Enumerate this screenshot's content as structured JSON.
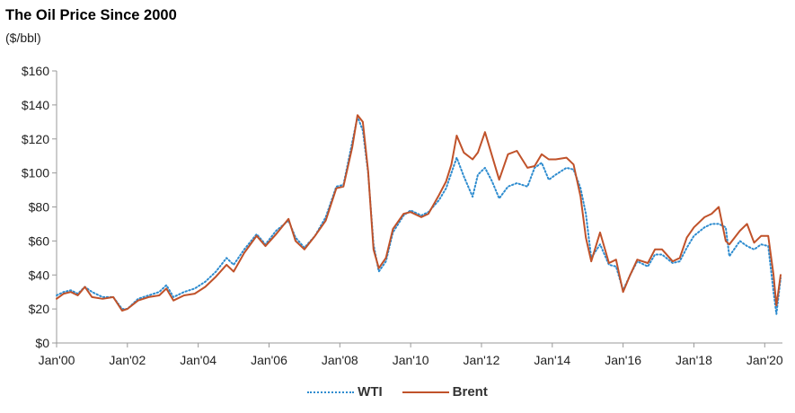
{
  "chart_data": {
    "type": "line",
    "title": "The Oil Price Since 2000",
    "subtitle": "($/bbl)",
    "xlabel": "",
    "ylabel": "",
    "ylim": [
      0,
      160
    ],
    "xlim": [
      2000.0,
      2020.5
    ],
    "y_ticks": [
      0,
      20,
      40,
      60,
      80,
      100,
      120,
      140,
      160
    ],
    "y_tick_labels": [
      "$0",
      "$20",
      "$40",
      "$60",
      "$80",
      "$100",
      "$120",
      "$140",
      "$160"
    ],
    "x_ticks": [
      2000,
      2002,
      2004,
      2006,
      2008,
      2010,
      2012,
      2014,
      2016,
      2018,
      2020
    ],
    "x_tick_labels": [
      "Jan'00",
      "Jan'02",
      "Jan'04",
      "Jan'06",
      "Jan'08",
      "Jan'10",
      "Jan'12",
      "Jan'14",
      "Jan'16",
      "Jan'18",
      "Jan'20"
    ],
    "legend_position": "bottom-center",
    "colors": {
      "WTI": "#2e8ccf",
      "Brent": "#c0522a",
      "axis": "#999999"
    },
    "series": [
      {
        "name": "WTI",
        "style": "dotted",
        "x": [
          2000.0,
          2000.2,
          2000.4,
          2000.6,
          2000.8,
          2001.0,
          2001.3,
          2001.6,
          2001.85,
          2002.0,
          2002.3,
          2002.6,
          2002.9,
          2003.1,
          2003.3,
          2003.6,
          2003.9,
          2004.2,
          2004.5,
          2004.8,
          2005.0,
          2005.3,
          2005.65,
          2005.9,
          2006.2,
          2006.55,
          2006.75,
          2007.0,
          2007.3,
          2007.6,
          2007.9,
          2008.1,
          2008.35,
          2008.5,
          2008.65,
          2008.8,
          2008.95,
          2009.1,
          2009.3,
          2009.5,
          2009.8,
          2010.0,
          2010.3,
          2010.5,
          2010.8,
          2011.0,
          2011.15,
          2011.3,
          2011.5,
          2011.75,
          2011.9,
          2012.1,
          2012.3,
          2012.5,
          2012.75,
          2013.0,
          2013.3,
          2013.5,
          2013.7,
          2013.9,
          2014.1,
          2014.4,
          2014.6,
          2014.8,
          2014.95,
          2015.1,
          2015.35,
          2015.6,
          2015.8,
          2016.0,
          2016.2,
          2016.4,
          2016.7,
          2016.9,
          2017.1,
          2017.4,
          2017.6,
          2017.8,
          2018.0,
          2018.3,
          2018.5,
          2018.7,
          2018.9,
          2019.0,
          2019.3,
          2019.5,
          2019.7,
          2019.9,
          2020.1,
          2020.25,
          2020.33,
          2020.45
        ],
        "values": [
          28,
          30,
          31,
          29,
          33,
          30,
          27,
          27,
          20,
          20,
          26,
          28,
          30,
          34,
          27,
          30,
          32,
          36,
          42,
          50,
          46,
          55,
          64,
          58,
          66,
          72,
          62,
          56,
          63,
          74,
          92,
          93,
          118,
          133,
          125,
          100,
          58,
          42,
          48,
          65,
          75,
          78,
          75,
          77,
          84,
          91,
          100,
          109,
          98,
          86,
          99,
          103,
          95,
          85,
          92,
          94,
          92,
          103,
          106,
          96,
          99,
          103,
          102,
          91,
          76,
          50,
          58,
          46,
          45,
          31,
          40,
          48,
          45,
          52,
          52,
          47,
          48,
          56,
          63,
          68,
          70,
          70,
          68,
          51,
          60,
          57,
          55,
          58,
          57,
          30,
          17,
          38
        ]
      },
      {
        "name": "Brent",
        "style": "solid",
        "x": [
          2000.0,
          2000.2,
          2000.4,
          2000.6,
          2000.8,
          2001.0,
          2001.3,
          2001.6,
          2001.85,
          2002.0,
          2002.3,
          2002.6,
          2002.9,
          2003.1,
          2003.3,
          2003.6,
          2003.9,
          2004.2,
          2004.5,
          2004.8,
          2005.0,
          2005.3,
          2005.65,
          2005.9,
          2006.2,
          2006.55,
          2006.75,
          2007.0,
          2007.3,
          2007.6,
          2007.9,
          2008.1,
          2008.35,
          2008.5,
          2008.65,
          2008.8,
          2008.95,
          2009.1,
          2009.3,
          2009.5,
          2009.8,
          2010.0,
          2010.3,
          2010.5,
          2010.8,
          2011.0,
          2011.15,
          2011.3,
          2011.5,
          2011.75,
          2011.9,
          2012.1,
          2012.3,
          2012.5,
          2012.75,
          2013.0,
          2013.3,
          2013.5,
          2013.7,
          2013.9,
          2014.1,
          2014.4,
          2014.6,
          2014.8,
          2014.95,
          2015.1,
          2015.35,
          2015.6,
          2015.8,
          2016.0,
          2016.2,
          2016.4,
          2016.7,
          2016.9,
          2017.1,
          2017.4,
          2017.6,
          2017.8,
          2018.0,
          2018.3,
          2018.5,
          2018.7,
          2018.9,
          2019.0,
          2019.3,
          2019.5,
          2019.7,
          2019.9,
          2020.1,
          2020.25,
          2020.33,
          2020.45
        ],
        "values": [
          26,
          29,
          30,
          28,
          33,
          27,
          26,
          27,
          19,
          20,
          25,
          27,
          28,
          32,
          25,
          28,
          29,
          33,
          39,
          46,
          42,
          53,
          63,
          57,
          64,
          73,
          60,
          55,
          63,
          72,
          91,
          92,
          115,
          134,
          130,
          101,
          55,
          44,
          50,
          67,
          76,
          77,
          74,
          76,
          87,
          95,
          105,
          122,
          112,
          108,
          112,
          124,
          110,
          96,
          111,
          113,
          103,
          104,
          111,
          108,
          108,
          109,
          105,
          86,
          62,
          48,
          65,
          47,
          49,
          30,
          40,
          49,
          47,
          55,
          55,
          48,
          50,
          62,
          68,
          74,
          76,
          80,
          60,
          58,
          66,
          70,
          59,
          63,
          63,
          40,
          22,
          40
        ]
      }
    ]
  }
}
